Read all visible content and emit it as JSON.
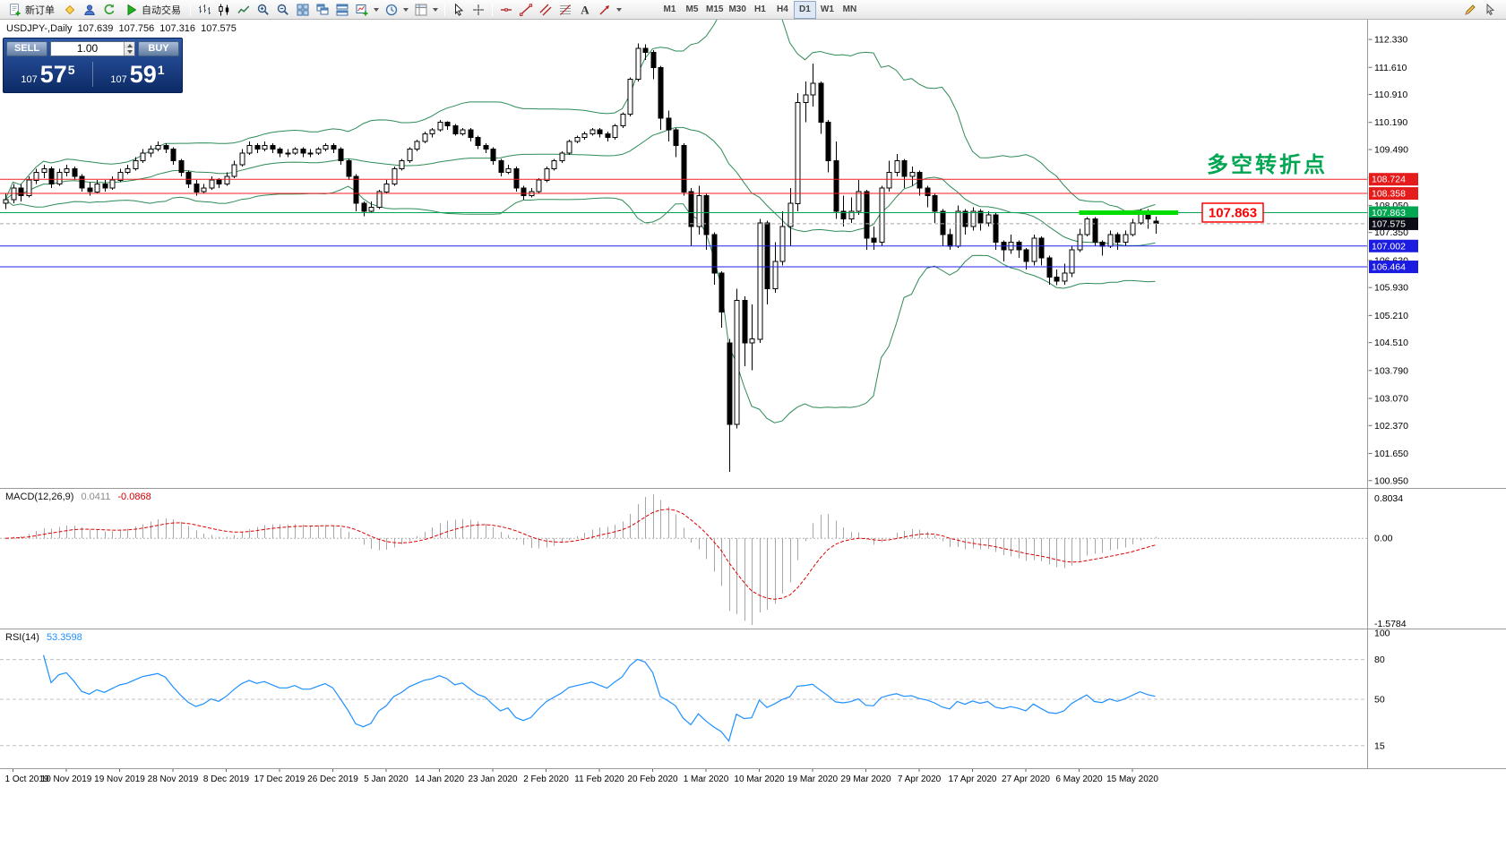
{
  "toolbar": {
    "new_order": "新订单",
    "autotrading": "自动交易",
    "timeframes": [
      "M1",
      "M5",
      "M15",
      "M30",
      "H1",
      "H4",
      "D1",
      "W1",
      "MN"
    ],
    "active_timeframe": "D1",
    "icon_buttons": [
      "new-order",
      "metaeditor",
      "profile",
      "refresh",
      "autotrading",
      "bar-chart",
      "candlestick",
      "line-chart",
      "zoom-in",
      "zoom-out",
      "tile-windows",
      "cascade-windows",
      "arrange-windows",
      "new-chart",
      "periods",
      "templates",
      "cursor",
      "crosshair",
      "horizontal-line",
      "trendline",
      "channel",
      "fibonacci",
      "text",
      "arrows",
      "pencil",
      "pointer"
    ]
  },
  "trade_panel": {
    "sell_label": "SELL",
    "buy_label": "BUY",
    "volume": "1.00",
    "sell_price": {
      "prefix": "107",
      "big": "57",
      "sup": "5"
    },
    "buy_price": {
      "prefix": "107",
      "big": "59",
      "sup": "1"
    }
  },
  "chart": {
    "symbol_title": "USDJPY-,Daily",
    "ohlc": {
      "open": "107.639",
      "high": "107.756",
      "low": "107.316",
      "close": "107.575"
    },
    "annotation": {
      "text": "多空转折点",
      "color": "#00a651"
    },
    "price_callout": {
      "text": "107.863",
      "color": "#ff0000"
    }
  },
  "macd_panel": {
    "title": "MACD(12,26,9)",
    "main_value": "0.0411",
    "signal_value": "-0.0868",
    "scale": {
      "max": 0.8034,
      "min": -1.5784
    },
    "scale_labels": [
      "0.8034",
      "0.00",
      "-1.5784"
    ]
  },
  "rsi_panel": {
    "title": "RSI(14)",
    "value": "53.3598",
    "period": 14,
    "levels": [
      {
        "value": 80,
        "style": "dash",
        "color": "#c0c0c0"
      },
      {
        "value": 50,
        "style": "dash",
        "color": "#c0c0c0"
      },
      {
        "value": 15,
        "style": "dash",
        "color": "#c0c0c0"
      }
    ],
    "scale_marks": [
      {
        "v": 100,
        "t": "100"
      },
      {
        "v": 80,
        "t": "80"
      },
      {
        "v": 50,
        "t": "50"
      },
      {
        "v": 15,
        "t": "15"
      }
    ]
  },
  "chart_data": {
    "type": "candlestick",
    "symbol": "USDJPY-",
    "period": "Daily",
    "ohlc_current": [
      107.639,
      107.756,
      107.316,
      107.575
    ],
    "y_scale": {
      "max": 112.84,
      "min": 100.76
    },
    "y_ticks": [
      "112.330",
      "111.610",
      "110.910",
      "110.190",
      "109.490",
      "108.770",
      "108.050",
      "107.350",
      "106.630",
      "105.930",
      "105.210",
      "104.510",
      "103.790",
      "103.070",
      "102.370",
      "101.650",
      "100.950"
    ],
    "x_labels": [
      "1 Oct 2019",
      "10 Nov 2019",
      "19 Nov 2019",
      "28 Nov 2019",
      "8 Dec 2019",
      "17 Dec 2019",
      "26 Dec 2019",
      "5 Jan 2020",
      "14 Jan 2020",
      "23 Jan 2020",
      "2 Feb 2020",
      "11 Feb 2020",
      "20 Feb 2020",
      "1 Mar 2020",
      "10 Mar 2020",
      "19 Mar 2020",
      "29 Mar 2020",
      "7 Apr 2020",
      "17 Apr 2020",
      "27 Apr 2020",
      "6 May 2020",
      "15 May 2020"
    ],
    "first_label_bar": 1,
    "label_step_bars": 7,
    "bollinger": {
      "period": 20,
      "deviation": 2,
      "color": "#2e8b57"
    },
    "hlines": [
      {
        "price": 108.724,
        "label": "108.724",
        "color": "#f02020",
        "bg": "#e51c1c",
        "style": "solid"
      },
      {
        "price": 108.358,
        "label": "108.358",
        "color": "#f02020",
        "bg": "#e51c1c",
        "style": "solid"
      },
      {
        "price": 107.863,
        "label": "107.863",
        "color": "#00a651",
        "bg": "#00a651",
        "style": "solid"
      },
      {
        "price": 107.575,
        "label": "107.575",
        "color": "#a8a8a8",
        "bg": "#0c0c16",
        "style": "dash"
      },
      {
        "price": 107.002,
        "label": "107.002",
        "color": "#2222ee",
        "bg": "#1c1ce0",
        "style": "solid"
      },
      {
        "price": 106.464,
        "label": "106.464",
        "color": "#2222ee",
        "bg": "#1c1ce0",
        "style": "solid"
      }
    ],
    "highlight": {
      "price": 107.863,
      "from_bar": 141,
      "to_bar": 154,
      "color": "#00dd00"
    },
    "candles": [
      [
        108.1,
        108.35,
        107.95,
        108.2
      ],
      [
        108.2,
        108.6,
        108.1,
        108.5
      ],
      [
        108.5,
        108.6,
        108.15,
        108.3
      ],
      [
        108.3,
        108.8,
        108.25,
        108.7
      ],
      [
        108.7,
        109.0,
        108.6,
        108.9
      ],
      [
        108.9,
        109.1,
        108.75,
        109.0
      ],
      [
        109.0,
        109.05,
        108.5,
        108.6
      ],
      [
        108.6,
        109.0,
        108.55,
        108.9
      ],
      [
        108.9,
        109.1,
        108.8,
        109.0
      ],
      [
        109.0,
        109.05,
        108.7,
        108.8
      ],
      [
        108.8,
        108.85,
        108.4,
        108.5
      ],
      [
        108.5,
        108.65,
        108.3,
        108.4
      ],
      [
        108.4,
        108.7,
        108.35,
        108.6
      ],
      [
        108.6,
        108.7,
        108.4,
        108.5
      ],
      [
        108.5,
        108.8,
        108.45,
        108.7
      ],
      [
        108.7,
        109.0,
        108.65,
        108.9
      ],
      [
        108.9,
        109.1,
        108.85,
        109.0
      ],
      [
        109.0,
        109.3,
        108.95,
        109.2
      ],
      [
        109.2,
        109.5,
        109.15,
        109.4
      ],
      [
        109.4,
        109.6,
        109.3,
        109.5
      ],
      [
        109.5,
        109.7,
        109.45,
        109.6
      ],
      [
        109.6,
        109.65,
        109.4,
        109.5
      ],
      [
        109.5,
        109.55,
        109.1,
        109.2
      ],
      [
        109.2,
        109.25,
        108.8,
        108.9
      ],
      [
        108.9,
        108.95,
        108.5,
        108.6
      ],
      [
        108.6,
        108.7,
        108.3,
        108.4
      ],
      [
        108.4,
        108.6,
        108.35,
        108.5
      ],
      [
        108.5,
        108.8,
        108.45,
        108.7
      ],
      [
        108.7,
        108.75,
        108.5,
        108.6
      ],
      [
        108.6,
        108.9,
        108.55,
        108.8
      ],
      [
        108.8,
        109.2,
        108.75,
        109.1
      ],
      [
        109.1,
        109.5,
        109.05,
        109.4
      ],
      [
        109.4,
        109.7,
        109.35,
        109.6
      ],
      [
        109.6,
        109.65,
        109.4,
        109.5
      ],
      [
        109.5,
        109.7,
        109.45,
        109.6
      ],
      [
        109.6,
        109.65,
        109.4,
        109.5
      ],
      [
        109.5,
        109.55,
        109.3,
        109.4
      ],
      [
        109.4,
        109.5,
        109.3,
        109.4
      ],
      [
        109.4,
        109.55,
        109.35,
        109.5
      ],
      [
        109.5,
        109.55,
        109.3,
        109.4
      ],
      [
        109.4,
        109.5,
        109.3,
        109.4
      ],
      [
        109.4,
        109.55,
        109.35,
        109.5
      ],
      [
        109.5,
        109.65,
        109.45,
        109.6
      ],
      [
        109.6,
        109.65,
        109.4,
        109.5
      ],
      [
        109.5,
        109.55,
        109.1,
        109.2
      ],
      [
        109.2,
        109.25,
        108.7,
        108.8
      ],
      [
        108.8,
        108.85,
        107.9,
        108.1
      ],
      [
        108.1,
        108.15,
        107.77,
        107.9
      ],
      [
        107.9,
        108.15,
        107.85,
        108.0
      ],
      [
        108.0,
        108.45,
        107.95,
        108.4
      ],
      [
        108.4,
        108.7,
        108.35,
        108.6
      ],
      [
        108.6,
        109.05,
        108.55,
        109.0
      ],
      [
        109.0,
        109.25,
        108.95,
        109.2
      ],
      [
        109.2,
        109.55,
        109.15,
        109.5
      ],
      [
        109.5,
        109.75,
        109.45,
        109.7
      ],
      [
        109.7,
        109.95,
        109.65,
        109.9
      ],
      [
        109.9,
        110.05,
        109.8,
        110.0
      ],
      [
        110.0,
        110.25,
        109.95,
        110.2
      ],
      [
        110.2,
        110.22,
        110.0,
        110.1
      ],
      [
        110.1,
        110.15,
        109.85,
        109.9
      ],
      [
        109.9,
        110.05,
        109.85,
        110.0
      ],
      [
        110.0,
        110.05,
        109.7,
        109.8
      ],
      [
        109.8,
        109.85,
        109.5,
        109.6
      ],
      [
        109.6,
        109.65,
        109.4,
        109.5
      ],
      [
        109.5,
        109.55,
        109.1,
        109.2
      ],
      [
        109.2,
        109.25,
        108.8,
        108.9
      ],
      [
        108.9,
        109.1,
        108.85,
        109.0
      ],
      [
        109.0,
        109.05,
        108.4,
        108.5
      ],
      [
        108.5,
        108.55,
        108.2,
        108.3
      ],
      [
        108.3,
        108.5,
        108.25,
        108.4
      ],
      [
        108.4,
        108.75,
        108.35,
        108.7
      ],
      [
        108.7,
        109.05,
        108.65,
        109.0
      ],
      [
        109.0,
        109.25,
        108.95,
        109.2
      ],
      [
        109.2,
        109.45,
        109.15,
        109.4
      ],
      [
        109.4,
        109.75,
        109.35,
        109.7
      ],
      [
        109.7,
        109.85,
        109.65,
        109.8
      ],
      [
        109.8,
        109.95,
        109.75,
        109.9
      ],
      [
        109.9,
        110.05,
        109.85,
        110.0
      ],
      [
        110.0,
        110.05,
        109.8,
        109.9
      ],
      [
        109.9,
        109.95,
        109.7,
        109.8
      ],
      [
        109.8,
        110.15,
        109.75,
        110.1
      ],
      [
        110.1,
        110.45,
        110.05,
        110.4
      ],
      [
        110.4,
        111.35,
        110.35,
        111.3
      ],
      [
        111.3,
        112.23,
        111.25,
        112.1
      ],
      [
        112.1,
        112.2,
        111.8,
        112.0
      ],
      [
        112.0,
        112.05,
        111.3,
        111.6
      ],
      [
        111.6,
        111.65,
        110.0,
        110.3
      ],
      [
        110.3,
        110.5,
        109.7,
        110.0
      ],
      [
        110.0,
        110.05,
        109.3,
        109.6
      ],
      [
        109.6,
        109.65,
        108.3,
        108.4
      ],
      [
        108.4,
        108.5,
        107.0,
        107.5
      ],
      [
        107.5,
        108.55,
        107.3,
        108.3
      ],
      [
        108.3,
        108.35,
        106.9,
        107.3
      ],
      [
        107.3,
        107.35,
        106.0,
        106.3
      ],
      [
        106.3,
        106.35,
        104.9,
        105.3
      ],
      [
        104.5,
        104.6,
        101.18,
        102.4
      ],
      [
        102.4,
        105.9,
        102.3,
        105.6
      ],
      [
        105.6,
        105.7,
        103.9,
        104.5
      ],
      [
        104.5,
        105.5,
        103.8,
        104.6
      ],
      [
        104.6,
        107.7,
        104.5,
        107.6
      ],
      [
        107.6,
        107.65,
        105.5,
        105.9
      ],
      [
        105.9,
        107.1,
        105.8,
        106.6
      ],
      [
        106.6,
        107.9,
        106.5,
        107.5
      ],
      [
        107.5,
        108.5,
        107.0,
        108.1
      ],
      [
        108.1,
        110.95,
        107.9,
        110.7
      ],
      [
        110.7,
        111.25,
        110.2,
        110.9
      ],
      [
        110.9,
        111.71,
        110.6,
        111.2
      ],
      [
        111.2,
        111.25,
        109.9,
        110.2
      ],
      [
        110.2,
        110.25,
        108.9,
        109.2
      ],
      [
        109.2,
        109.7,
        107.7,
        107.9
      ],
      [
        107.9,
        108.3,
        107.5,
        107.7
      ],
      [
        107.7,
        108.25,
        107.6,
        107.9
      ],
      [
        107.9,
        108.7,
        107.8,
        108.4
      ],
      [
        108.4,
        108.45,
        106.9,
        107.2
      ],
      [
        107.2,
        107.5,
        106.9,
        107.1
      ],
      [
        107.1,
        108.55,
        107.0,
        108.5
      ],
      [
        108.5,
        109.2,
        108.4,
        108.9
      ],
      [
        108.9,
        109.38,
        108.8,
        109.2
      ],
      [
        109.2,
        109.25,
        108.5,
        108.8
      ],
      [
        108.8,
        109.05,
        108.55,
        108.9
      ],
      [
        108.9,
        108.95,
        108.3,
        108.5
      ],
      [
        108.5,
        108.55,
        108.0,
        108.3
      ],
      [
        108.3,
        108.35,
        107.6,
        107.9
      ],
      [
        107.9,
        107.95,
        107.0,
        107.3
      ],
      [
        107.3,
        107.45,
        106.9,
        107.0
      ],
      [
        107.0,
        108.05,
        106.95,
        107.9
      ],
      [
        107.9,
        107.95,
        107.3,
        107.5
      ],
      [
        107.5,
        108.0,
        107.4,
        107.9
      ],
      [
        107.9,
        107.95,
        107.4,
        107.6
      ],
      [
        107.6,
        107.9,
        107.5,
        107.8
      ],
      [
        107.8,
        107.85,
        106.9,
        107.1
      ],
      [
        107.1,
        107.15,
        106.6,
        106.9
      ],
      [
        106.9,
        107.3,
        106.8,
        107.1
      ],
      [
        107.1,
        107.15,
        106.7,
        106.9
      ],
      [
        106.9,
        106.95,
        106.4,
        106.6
      ],
      [
        106.6,
        107.3,
        106.5,
        107.2
      ],
      [
        107.2,
        107.25,
        106.5,
        106.7
      ],
      [
        106.7,
        106.75,
        106.0,
        106.2
      ],
      [
        106.2,
        106.4,
        105.99,
        106.1
      ],
      [
        106.1,
        106.55,
        106.0,
        106.3
      ],
      [
        106.3,
        107.0,
        106.2,
        106.9
      ],
      [
        106.9,
        107.45,
        106.85,
        107.3
      ],
      [
        107.3,
        107.75,
        107.25,
        107.7
      ],
      [
        107.7,
        107.75,
        107.0,
        107.1
      ],
      [
        107.1,
        107.15,
        106.75,
        107.0
      ],
      [
        107.0,
        107.4,
        106.95,
        107.3
      ],
      [
        107.3,
        107.35,
        106.9,
        107.1
      ],
      [
        107.1,
        107.4,
        107.0,
        107.3
      ],
      [
        107.3,
        107.7,
        107.25,
        107.6
      ],
      [
        107.6,
        107.95,
        107.55,
        107.9
      ],
      [
        107.9,
        107.95,
        107.45,
        107.7
      ],
      [
        107.64,
        107.76,
        107.32,
        107.58
      ]
    ]
  }
}
